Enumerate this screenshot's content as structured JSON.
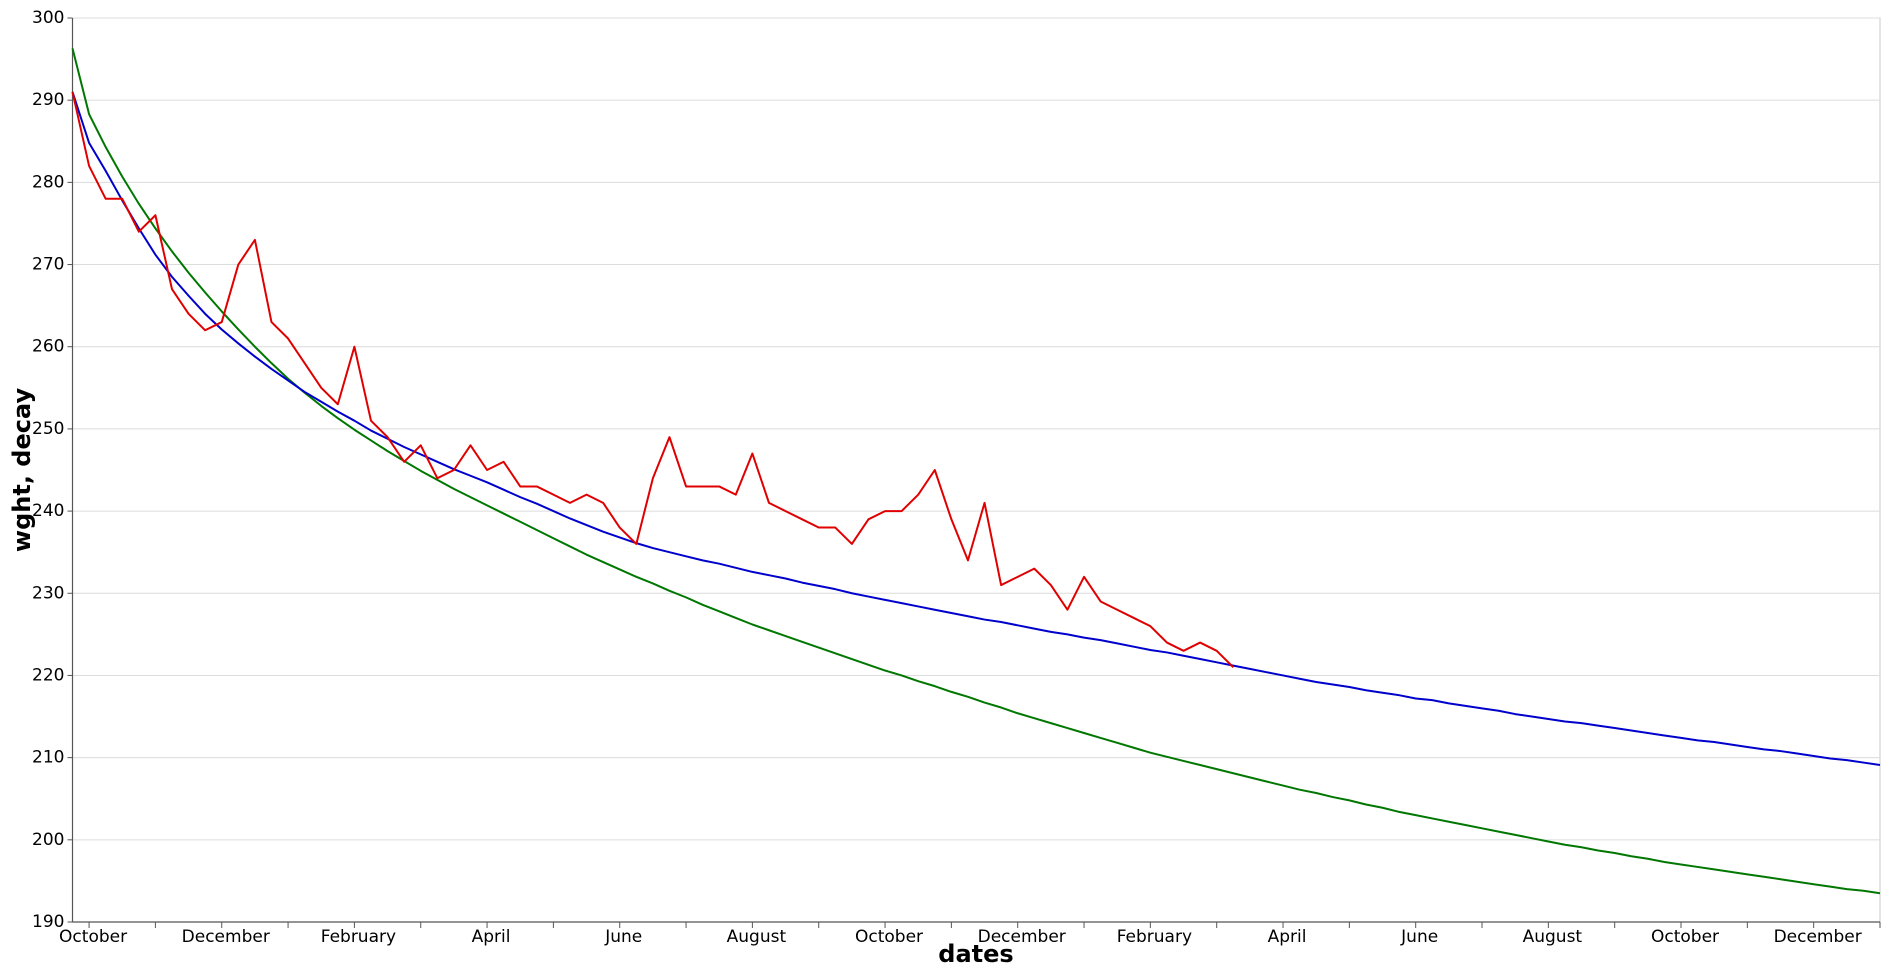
{
  "chart_data": {
    "type": "line",
    "x_label": "dates",
    "y_label": "wght, decay",
    "categories": [
      null,
      "October",
      null,
      null,
      null,
      null,
      null,
      null,
      null,
      "December",
      null,
      null,
      null,
      null,
      null,
      null,
      null,
      "February",
      null,
      null,
      null,
      null,
      null,
      null,
      null,
      "April",
      null,
      null,
      null,
      null,
      null,
      null,
      null,
      "June",
      null,
      null,
      null,
      null,
      null,
      null,
      null,
      "August",
      null,
      null,
      null,
      null,
      null,
      null,
      null,
      "October",
      null,
      null,
      null,
      null,
      null,
      null,
      null,
      "December",
      null,
      null,
      null,
      null,
      null,
      null,
      null,
      "February",
      null,
      null,
      null,
      null,
      null,
      null,
      null,
      "April",
      null,
      null,
      null,
      null,
      null,
      null,
      null,
      "June",
      null,
      null,
      null,
      null,
      null,
      null,
      null,
      "August",
      null,
      null,
      null,
      null,
      null,
      null,
      null,
      "October",
      null,
      null,
      null,
      null,
      null,
      null,
      null,
      "December",
      null,
      null,
      null,
      null
    ],
    "series": [
      {
        "color": "#007700",
        "values": [
          296.3,
          288.3,
          284.3,
          280.7,
          277.4,
          274.4,
          271.6,
          269.0,
          266.6,
          264.3,
          262.1,
          260.0,
          258.0,
          256.1,
          254.4,
          252.8,
          251.3,
          249.9,
          248.6,
          247.3,
          246.1,
          244.9,
          243.8,
          242.7,
          241.7,
          240.7,
          239.7,
          238.7,
          237.7,
          236.7,
          235.7,
          234.7,
          233.8,
          232.9,
          232.0,
          231.2,
          230.3,
          229.5,
          228.6,
          227.8,
          227.0,
          226.2,
          225.5,
          224.8,
          224.1,
          223.4,
          222.7,
          222.0,
          221.3,
          220.6,
          220.0,
          219.3,
          218.7,
          218.0,
          217.4,
          216.7,
          216.1,
          215.4,
          214.8,
          214.2,
          213.6,
          213.0,
          212.4,
          211.8,
          211.2,
          210.6,
          210.1,
          209.6,
          209.1,
          208.6,
          208.1,
          207.6,
          207.1,
          206.6,
          206.1,
          205.7,
          205.2,
          204.8,
          204.3,
          203.9,
          203.4,
          203.0,
          202.6,
          202.2,
          201.8,
          201.4,
          201.0,
          200.6,
          200.2,
          199.8,
          199.4,
          199.1,
          198.7,
          198.4,
          198.0,
          197.7,
          197.3,
          197.0,
          196.7,
          196.4,
          196.1,
          195.8,
          195.5,
          195.2,
          194.9,
          194.6,
          194.3,
          194.0,
          193.8,
          193.5
        ]
      },
      {
        "color": "#0000cc",
        "values": [
          291,
          284.8,
          281.4,
          277.8,
          274.4,
          271.2,
          268.5,
          266.2,
          264.0,
          262.1,
          260.4,
          258.8,
          257.3,
          255.9,
          254.5,
          253.3,
          252.1,
          251.0,
          249.8,
          248.8,
          247.8,
          246.9,
          246.0,
          245.1,
          244.3,
          243.5,
          242.6,
          241.7,
          240.9,
          240.0,
          239.1,
          238.3,
          237.5,
          236.8,
          236.1,
          235.5,
          235.0,
          234.5,
          234.0,
          233.6,
          233.1,
          232.6,
          232.2,
          231.8,
          231.3,
          230.9,
          230.5,
          230.0,
          229.6,
          229.2,
          228.8,
          228.4,
          228.0,
          227.6,
          227.2,
          226.8,
          226.5,
          226.1,
          225.7,
          225.3,
          225.0,
          224.6,
          224.3,
          223.9,
          223.5,
          223.1,
          222.8,
          222.4,
          222.0,
          221.6,
          221.2,
          220.8,
          220.4,
          220.0,
          219.6,
          219.2,
          218.9,
          218.6,
          218.2,
          217.9,
          217.6,
          217.2,
          217.0,
          216.6,
          216.3,
          216.0,
          215.7,
          215.3,
          215.0,
          214.7,
          214.4,
          214.2,
          213.9,
          213.6,
          213.3,
          213.0,
          212.7,
          212.4,
          212.1,
          211.9,
          211.6,
          211.3,
          211.0,
          210.8,
          210.5,
          210.2,
          209.9,
          209.7,
          209.4,
          209.1
        ]
      },
      {
        "color": "#e00000",
        "values": [
          291,
          282,
          278,
          278,
          274,
          276,
          267,
          264,
          262,
          263,
          270,
          273,
          263,
          261,
          258,
          255,
          253,
          260,
          251,
          249,
          246,
          248,
          244,
          245,
          248,
          245,
          246,
          243,
          243,
          242,
          241,
          242,
          241,
          238,
          236,
          244,
          249,
          243,
          243,
          243,
          242,
          247,
          241,
          240,
          239,
          238,
          238,
          236,
          239,
          240,
          240,
          242,
          245,
          239,
          234,
          241,
          231,
          232,
          233,
          231,
          228,
          232,
          229,
          228,
          227,
          226,
          224,
          223,
          224,
          223,
          221,
          null,
          null,
          null,
          null,
          null,
          null,
          null,
          null,
          null,
          null,
          null,
          null,
          null,
          null,
          null,
          null,
          null,
          null,
          null,
          null,
          null,
          null,
          null,
          null,
          null,
          null,
          null,
          null,
          null,
          null,
          null,
          null,
          null,
          null,
          null,
          null,
          null,
          null,
          null
        ]
      }
    ],
    "ylim": [
      190,
      300
    ],
    "yticks": [
      190,
      200,
      210,
      220,
      230,
      240,
      250,
      260,
      270,
      280,
      290,
      300
    ],
    "grid": true
  }
}
